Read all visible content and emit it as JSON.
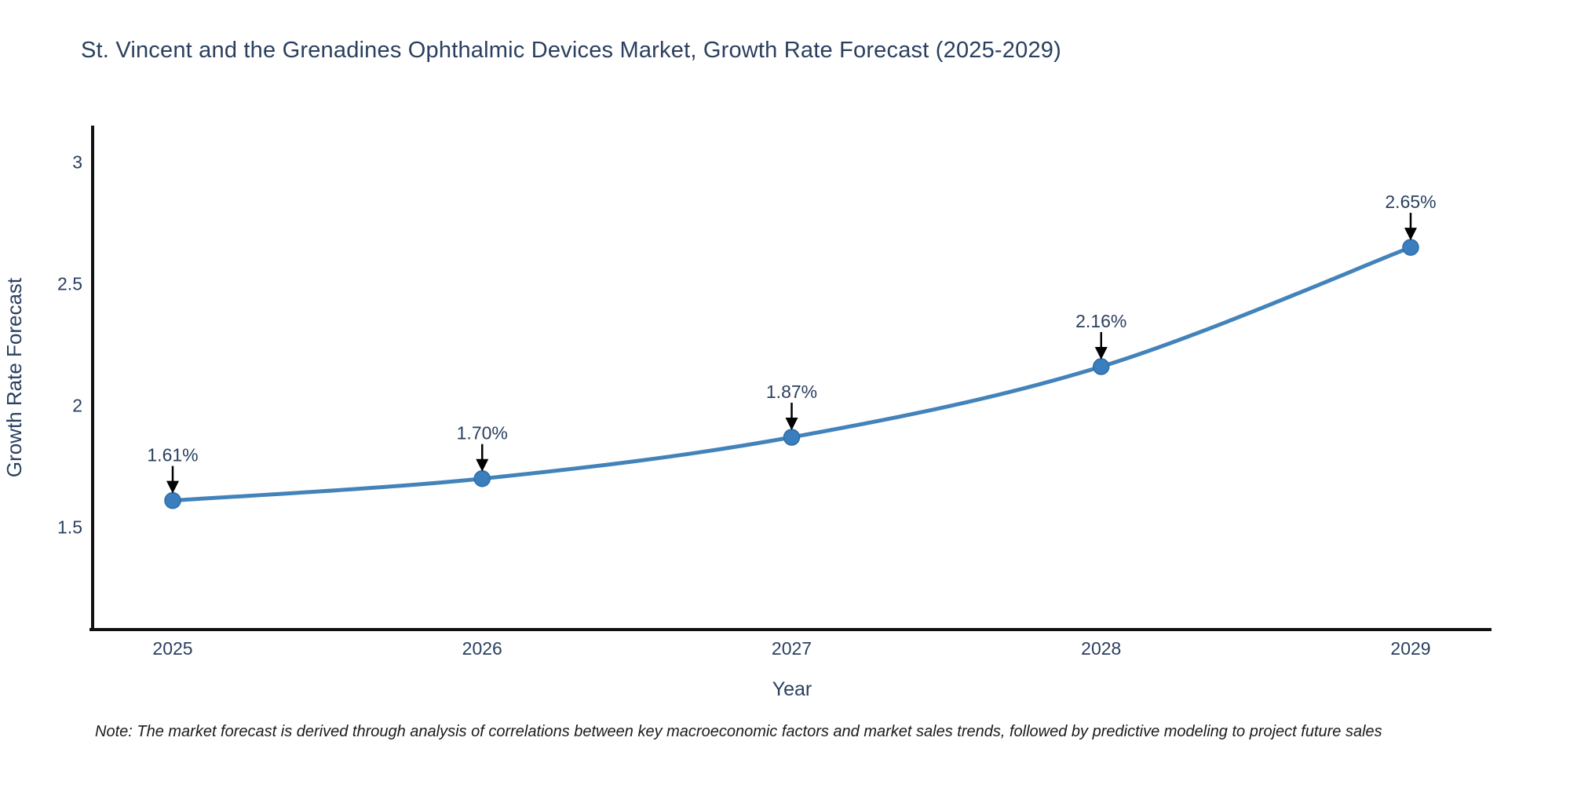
{
  "chart_data": {
    "type": "line",
    "title": "St. Vincent and the Grenadines Ophthalmic Devices Market, Growth Rate Forecast (2025-2029)",
    "x": [
      2025,
      2026,
      2027,
      2028,
      2029
    ],
    "values": [
      1.61,
      1.7,
      1.87,
      2.16,
      2.65
    ],
    "point_labels": [
      "1.61%",
      "1.70%",
      "1.87%",
      "2.16%",
      "2.65%"
    ],
    "xtick_labels": [
      "2025",
      "2026",
      "2027",
      "2028",
      "2029"
    ],
    "ytick_values": [
      1.5,
      2,
      2.5,
      3
    ],
    "ytick_labels": [
      "1.5",
      "2",
      "2.5",
      "3"
    ],
    "xlabel": "Year",
    "ylabel": "Growth Rate Forecast",
    "ylim": [
      1.08,
      3.15
    ],
    "grid": false,
    "legend": "none",
    "colors": {
      "line": "#4383ba",
      "marker_fill": "#3a7ebf",
      "marker_edge": "#2e6da4",
      "axis_spine": "#111111",
      "label_text": "#2a3f5f",
      "arrow": "#000000",
      "note_text": "#1b1b1b",
      "background": "#ffffff"
    }
  },
  "note": "Note: The market forecast is derived through analysis of correlations between key macroeconomic factors and market sales trends, followed by predictive modeling to project future sales"
}
